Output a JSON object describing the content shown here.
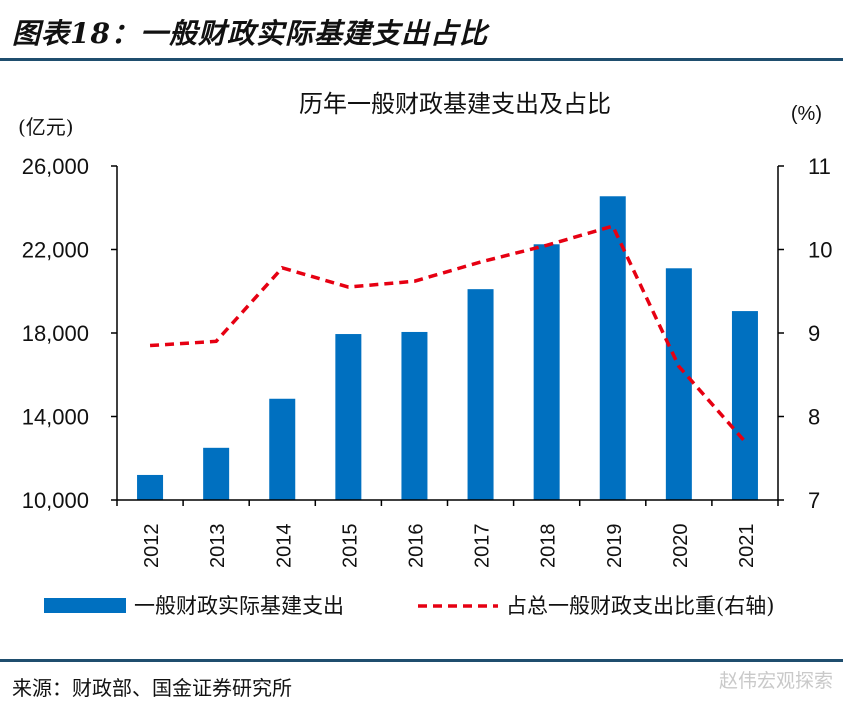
{
  "figure": {
    "title": "图表18：一般财政实际基建支出占比",
    "source": "来源：财政部、国金证券研究所",
    "watermark": "赵伟宏观探索"
  },
  "chart_data": {
    "type": "bar+line",
    "title": "历年一般财政基建支出及占比",
    "left_unit": "(亿元)",
    "right_unit": "(%)",
    "categories": [
      "2012",
      "2013",
      "2014",
      "2015",
      "2016",
      "2017",
      "2018",
      "2019",
      "2020",
      "2021"
    ],
    "left_axis": {
      "min": 10000,
      "max": 26000,
      "ticks": [
        10000,
        14000,
        18000,
        22000,
        26000
      ],
      "tick_labels": [
        "10,000",
        "14,000",
        "18,000",
        "22,000",
        "26,000"
      ]
    },
    "right_axis": {
      "min": 7,
      "max": 11,
      "ticks": [
        7,
        8,
        9,
        10,
        11
      ],
      "tick_labels": [
        "7",
        "8",
        "9",
        "10",
        "11"
      ]
    },
    "series": [
      {
        "name": "一般财政实际基建支出",
        "kind": "bar",
        "axis": "left",
        "color": "#0070c0",
        "values": [
          11200,
          12500,
          14850,
          17950,
          18050,
          20100,
          22250,
          24550,
          21100,
          19050
        ]
      },
      {
        "name": "占总一般财政支出比重(右轴)",
        "kind": "line",
        "axis": "right",
        "color": "#e60012",
        "dashed": true,
        "values": [
          8.85,
          8.9,
          9.78,
          9.55,
          9.62,
          9.85,
          10.05,
          10.28,
          8.6,
          7.7
        ]
      }
    ],
    "legend": "bottom",
    "grid": false
  }
}
